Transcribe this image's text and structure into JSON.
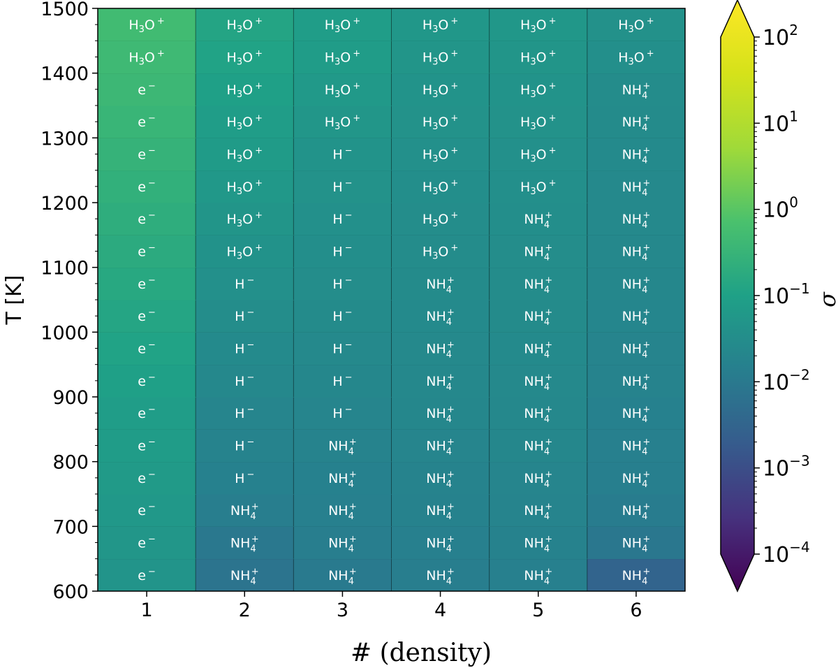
{
  "chart_data": {
    "type": "heatmap",
    "xlabel": "# (density)",
    "ylabel": "T [K]",
    "x_categories": [
      "1",
      "2",
      "3",
      "4",
      "5",
      "6"
    ],
    "y_ticks": [
      "600",
      "700",
      "800",
      "900",
      "1000",
      "1100",
      "1200",
      "1300",
      "1400",
      "1500"
    ],
    "ylim": [
      600,
      1500
    ],
    "colorbar": {
      "label": "σ",
      "scale": "log",
      "range": [
        -4,
        2
      ],
      "ticks": [
        {
          "base": "10",
          "exp": "2"
        },
        {
          "base": "10",
          "exp": "1"
        },
        {
          "base": "10",
          "exp": "0"
        },
        {
          "base": "10",
          "exp": "−1"
        },
        {
          "base": "10",
          "exp": "−2"
        },
        {
          "base": "10",
          "exp": "−3"
        },
        {
          "base": "10",
          "exp": "−4"
        }
      ],
      "extend": "both"
    },
    "temperature_rows": [
      625,
      675,
      725,
      775,
      825,
      875,
      925,
      975,
      1025,
      1075,
      1125,
      1175,
      1225,
      1275,
      1325,
      1375,
      1425,
      1475
    ],
    "cell_labels": [
      [
        "e⁻",
        "NH4+",
        "NH4+",
        "NH4+",
        "NH4+",
        "NH4+"
      ],
      [
        "e⁻",
        "NH4+",
        "NH4+",
        "NH4+",
        "NH4+",
        "NH4+"
      ],
      [
        "e⁻",
        "NH4+",
        "NH4+",
        "NH4+",
        "NH4+",
        "NH4+"
      ],
      [
        "e⁻",
        "H⁻",
        "NH4+",
        "NH4+",
        "NH4+",
        "NH4+"
      ],
      [
        "e⁻",
        "H⁻",
        "NH4+",
        "NH4+",
        "NH4+",
        "NH4+"
      ],
      [
        "e⁻",
        "H⁻",
        "H⁻",
        "NH4+",
        "NH4+",
        "NH4+"
      ],
      [
        "e⁻",
        "H⁻",
        "H⁻",
        "NH4+",
        "NH4+",
        "NH4+"
      ],
      [
        "e⁻",
        "H⁻",
        "H⁻",
        "NH4+",
        "NH4+",
        "NH4+"
      ],
      [
        "e⁻",
        "H⁻",
        "H⁻",
        "NH4+",
        "NH4+",
        "NH4+"
      ],
      [
        "e⁻",
        "H⁻",
        "H⁻",
        "NH4+",
        "NH4+",
        "NH4+"
      ],
      [
        "e⁻",
        "H3O+",
        "H⁻",
        "H3O+",
        "NH4+",
        "NH4+"
      ],
      [
        "e⁻",
        "H3O+",
        "H⁻",
        "H3O+",
        "NH4+",
        "NH4+"
      ],
      [
        "e⁻",
        "H3O+",
        "H⁻",
        "H3O+",
        "H3O+",
        "NH4+"
      ],
      [
        "e⁻",
        "H3O+",
        "H⁻",
        "H3O+",
        "H3O+",
        "NH4+"
      ],
      [
        "e⁻",
        "H3O+",
        "H3O+",
        "H3O+",
        "H3O+",
        "NH4+"
      ],
      [
        "e⁻",
        "H3O+",
        "H3O+",
        "H3O+",
        "H3O+",
        "NH4+"
      ],
      [
        "H3O+",
        "H3O+",
        "H3O+",
        "H3O+",
        "H3O+",
        "H3O+"
      ],
      [
        "H3O+",
        "H3O+",
        "H3O+",
        "H3O+",
        "H3O+",
        "H3O+"
      ]
    ],
    "log_sigma": [
      [
        -1.28,
        -1.98,
        -1.85,
        -1.78,
        -1.72,
        -2.32
      ],
      [
        -1.24,
        -1.9,
        -1.78,
        -1.72,
        -1.68,
        -1.92
      ],
      [
        -1.2,
        -1.78,
        -1.72,
        -1.68,
        -1.64,
        -1.82
      ],
      [
        -1.16,
        -1.7,
        -1.7,
        -1.66,
        -1.62,
        -1.76
      ],
      [
        -1.12,
        -1.66,
        -1.66,
        -1.62,
        -1.58,
        -1.72
      ],
      [
        -1.08,
        -1.62,
        -1.62,
        -1.58,
        -1.56,
        -1.7
      ],
      [
        -1.02,
        -1.56,
        -1.58,
        -1.56,
        -1.54,
        -1.66
      ],
      [
        -0.96,
        -1.5,
        -1.52,
        -1.54,
        -1.5,
        -1.64
      ],
      [
        -0.9,
        -1.44,
        -1.48,
        -1.5,
        -1.48,
        -1.6
      ],
      [
        -0.84,
        -1.38,
        -1.44,
        -1.48,
        -1.46,
        -1.58
      ],
      [
        -0.78,
        -1.32,
        -1.42,
        -1.46,
        -1.44,
        -1.56
      ],
      [
        -0.72,
        -1.26,
        -1.38,
        -1.44,
        -1.42,
        -1.54
      ],
      [
        -0.66,
        -1.2,
        -1.34,
        -1.42,
        -1.4,
        -1.52
      ],
      [
        -0.6,
        -1.14,
        -1.3,
        -1.38,
        -1.38,
        -1.5
      ],
      [
        -0.54,
        -1.08,
        -1.24,
        -1.34,
        -1.34,
        -1.48
      ],
      [
        -0.48,
        -1.02,
        -1.18,
        -1.3,
        -1.3,
        -1.46
      ],
      [
        -0.44,
        -0.96,
        -1.12,
        -1.26,
        -1.26,
        -1.4
      ],
      [
        -0.4,
        -0.92,
        -1.08,
        -1.22,
        -1.22,
        -1.36
      ]
    ]
  }
}
